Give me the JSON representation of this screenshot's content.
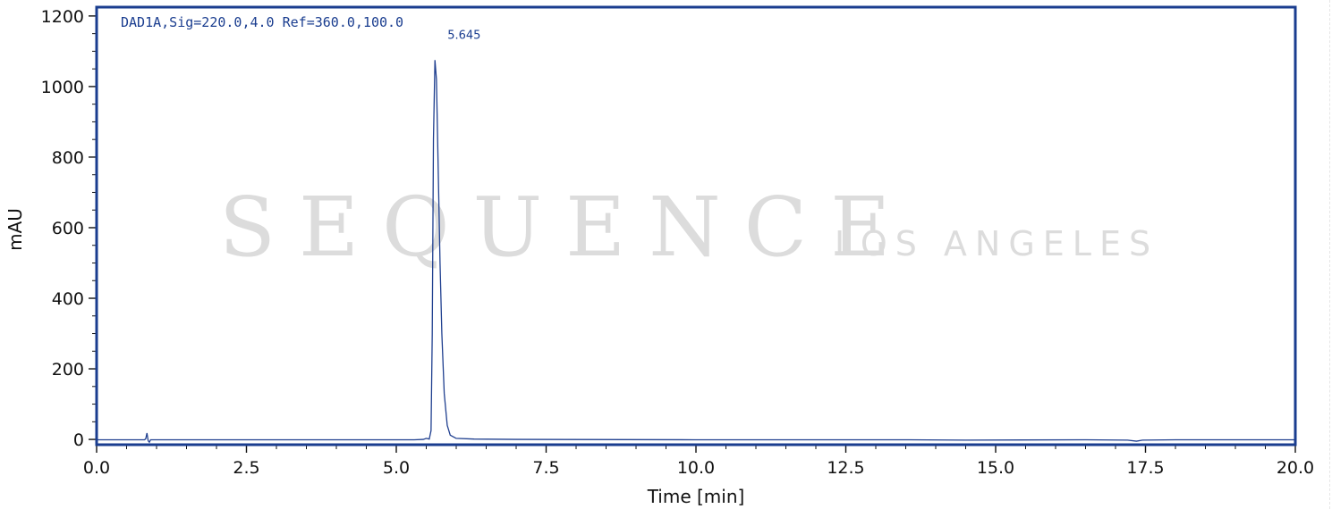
{
  "chart_data": {
    "type": "line",
    "signal_label": "DAD1A,Sig=220.0,4.0 Ref=360.0,100.0",
    "xlabel": "Time [min]",
    "ylabel": "mAU",
    "xlim": [
      0,
      20
    ],
    "ylim": [
      -15,
      1225
    ],
    "x_ticks": [
      "0.0",
      "2.5",
      "5.0",
      "7.5",
      "10.0",
      "12.5",
      "15.0",
      "17.5",
      "20.0"
    ],
    "y_ticks": [
      "0",
      "200",
      "400",
      "600",
      "800",
      "1000",
      "1200"
    ],
    "grid": false,
    "peaks": [
      {
        "label": "5.645",
        "x": 5.645,
        "y": 1075
      }
    ],
    "series": [
      {
        "color": "#1f3f8f",
        "points": [
          [
            0,
            -1
          ],
          [
            0.8,
            -1
          ],
          [
            0.82,
            2
          ],
          [
            0.84,
            18
          ],
          [
            0.86,
            -4
          ],
          [
            0.88,
            -8
          ],
          [
            0.9,
            -1
          ],
          [
            0.95,
            -1
          ],
          [
            3.0,
            -1
          ],
          [
            5.3,
            -1
          ],
          [
            5.45,
            0
          ],
          [
            5.5,
            3
          ],
          [
            5.55,
            1
          ],
          [
            5.58,
            25
          ],
          [
            5.6,
            300
          ],
          [
            5.62,
            850
          ],
          [
            5.645,
            1075
          ],
          [
            5.67,
            1020
          ],
          [
            5.7,
            760
          ],
          [
            5.73,
            500
          ],
          [
            5.76,
            300
          ],
          [
            5.8,
            130
          ],
          [
            5.85,
            40
          ],
          [
            5.9,
            12
          ],
          [
            6.0,
            3
          ],
          [
            6.3,
            1
          ],
          [
            7.0,
            0
          ],
          [
            10.0,
            -1
          ],
          [
            13.5,
            -1
          ],
          [
            14.5,
            -2
          ],
          [
            16.5,
            -1
          ],
          [
            17.2,
            -2
          ],
          [
            17.35,
            -5
          ],
          [
            17.45,
            -2
          ],
          [
            18.0,
            -1
          ],
          [
            20.0,
            -1
          ]
        ]
      }
    ],
    "frame_color": "#1a3d8f",
    "trace_color": "#1f3f8f"
  },
  "watermark": {
    "main": "SEQUENCE",
    "sub": "LOS ANGELES"
  }
}
